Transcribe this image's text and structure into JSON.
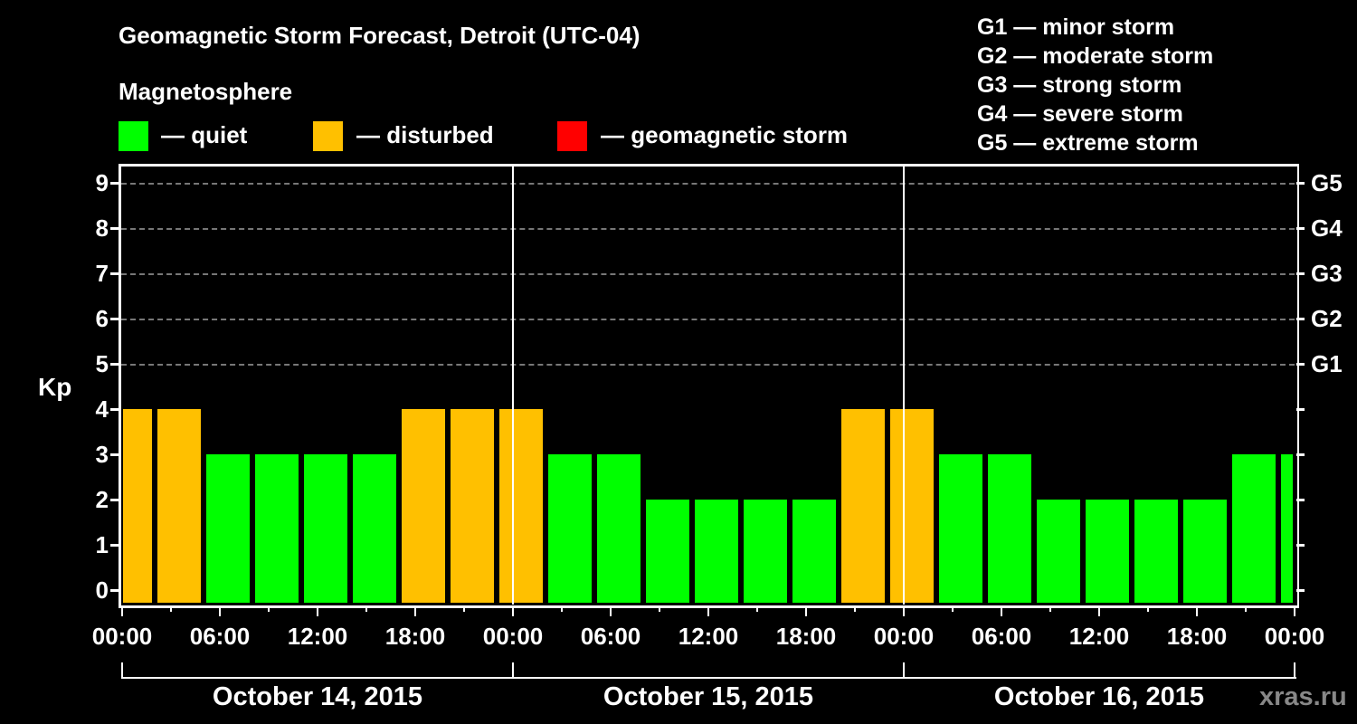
{
  "header": {
    "title": "Geomagnetic Storm Forecast, Detroit (UTC-04)",
    "subtitle": "Magnetosphere"
  },
  "legend": [
    {
      "label": "— quiet",
      "color": "#00ff00"
    },
    {
      "label": "— disturbed",
      "color": "#ffc000"
    },
    {
      "label": "— geomagnetic storm",
      "color": "#ff0000"
    }
  ],
  "g_scale": [
    "G1 — minor storm",
    "G2 — moderate storm",
    "G3 — strong storm",
    "G4 — severe storm",
    "G5 — extreme storm"
  ],
  "axis": {
    "ylabel": "Kp",
    "yticks": [
      "0",
      "1",
      "2",
      "3",
      "4",
      "5",
      "6",
      "7",
      "8",
      "9"
    ],
    "right_ticks": [
      "G1",
      "G2",
      "G3",
      "G4",
      "G5"
    ],
    "xticks": [
      "00:00",
      "06:00",
      "12:00",
      "18:00",
      "00:00",
      "06:00",
      "12:00",
      "18:00",
      "00:00",
      "06:00",
      "12:00",
      "18:00",
      "00:00"
    ],
    "dates": [
      "October 14, 2015",
      "October 15, 2015",
      "October 16, 2015"
    ]
  },
  "watermark": "xras.ru",
  "chart_data": {
    "type": "bar",
    "title": "Geomagnetic Storm Forecast, Detroit (UTC-04)",
    "xlabel": "",
    "ylabel": "Kp",
    "ylim": [
      0,
      9
    ],
    "grid": true,
    "legend_position": "top",
    "legend": [
      "quiet",
      "disturbed",
      "geomagnetic storm"
    ],
    "categories": [
      "Oct14 00:00",
      "Oct14 02:00",
      "Oct14 05:00",
      "Oct14 08:00",
      "Oct14 11:00",
      "Oct14 14:00",
      "Oct14 17:00",
      "Oct14 20:00",
      "Oct14 23:00",
      "Oct15 02:00",
      "Oct15 05:00",
      "Oct15 08:00",
      "Oct15 11:00",
      "Oct15 14:00",
      "Oct15 17:00",
      "Oct15 20:00",
      "Oct15 23:00",
      "Oct16 02:00",
      "Oct16 05:00",
      "Oct16 08:00",
      "Oct16 11:00",
      "Oct16 14:00",
      "Oct16 17:00",
      "Oct16 20:00",
      "Oct16 23:00"
    ],
    "values": [
      4,
      4,
      3,
      3,
      3,
      3,
      4,
      4,
      4,
      3,
      3,
      2,
      2,
      2,
      2,
      4,
      4,
      3,
      3,
      2,
      2,
      2,
      2,
      3,
      3
    ],
    "status": [
      "disturbed",
      "disturbed",
      "quiet",
      "quiet",
      "quiet",
      "quiet",
      "disturbed",
      "disturbed",
      "disturbed",
      "quiet",
      "quiet",
      "quiet",
      "quiet",
      "quiet",
      "quiet",
      "disturbed",
      "disturbed",
      "quiet",
      "quiet",
      "quiet",
      "quiet",
      "quiet",
      "quiet",
      "quiet",
      "quiet"
    ],
    "right_axis": {
      "5": "G1",
      "6": "G2",
      "7": "G3",
      "8": "G4",
      "9": "G5"
    }
  }
}
